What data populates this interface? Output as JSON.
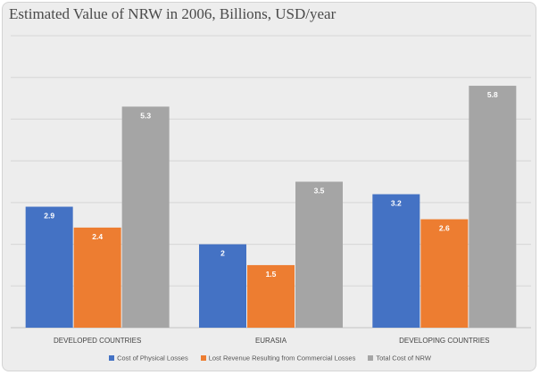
{
  "chart_data": {
    "type": "bar",
    "title": "Estimated Value of NRW in 2006, Billions, USD/year",
    "categories": [
      "DEVELOPED COUNTRIES",
      "EURASIA",
      "DEVELOPING COUNTRIES"
    ],
    "series": [
      {
        "name": "Cost of Physical Losses",
        "values": [
          2.9,
          2,
          3.2
        ],
        "labels": [
          "2.9",
          "2",
          "3.2"
        ],
        "color": "#4472c4"
      },
      {
        "name": "Lost Revenue Resulting from Commercial Losses",
        "values": [
          2.4,
          1.5,
          2.6
        ],
        "labels": [
          "2.4",
          "1.5",
          "2.6"
        ],
        "color": "#ed7d31"
      },
      {
        "name": "Total Cost of NRW",
        "values": [
          5.3,
          3.5,
          5.8
        ],
        "labels": [
          "5.3",
          "3.5",
          "5.8"
        ],
        "color": "#a5a5a5"
      }
    ],
    "ylim": [
      0,
      7
    ],
    "grid": true,
    "legend": "bottom"
  }
}
